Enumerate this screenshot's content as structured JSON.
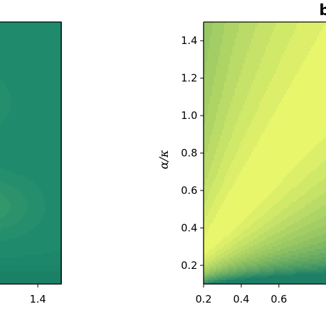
{
  "chart_data": [
    {
      "panel": "left (cropped)",
      "type": "heatmap",
      "title": "",
      "xlabel": "",
      "ylabel": "",
      "x_ticks": [
        "1.4"
      ],
      "x_tick_values": [
        1.4
      ],
      "xlim": [
        1.05,
        1.55
      ],
      "colormap": "summer-like",
      "colors": {
        "main": "#1f8a6c",
        "light": "#3f9f6b",
        "dark": "#177a62"
      }
    },
    {
      "panel": "right",
      "type": "heatmap",
      "title": "",
      "panel_letter": "b",
      "xlabel": "",
      "ylabel": "α/κ",
      "xlim": [
        0.2,
        0.85
      ],
      "ylim": [
        0.1,
        1.5
      ],
      "x_ticks": [
        "0.2",
        "0.4",
        "0.6"
      ],
      "x_tick_values": [
        0.2,
        0.4,
        0.6
      ],
      "y_ticks": [
        "0.2",
        "0.4",
        "0.6",
        "0.8",
        "1.0",
        "1.2",
        "1.4"
      ],
      "y_tick_values": [
        0.2,
        0.4,
        0.6,
        0.8,
        1.0,
        1.2,
        1.4
      ],
      "colormap": "summer-like",
      "colors": {
        "low": "#1c7f66",
        "mid": "#8cc063",
        "high": "#f4fd6c"
      },
      "description_of_field": "bright ridge along diagonal ratio α/κ ≈ 1.35·x, dark at bottom edge and top-left"
    }
  ]
}
